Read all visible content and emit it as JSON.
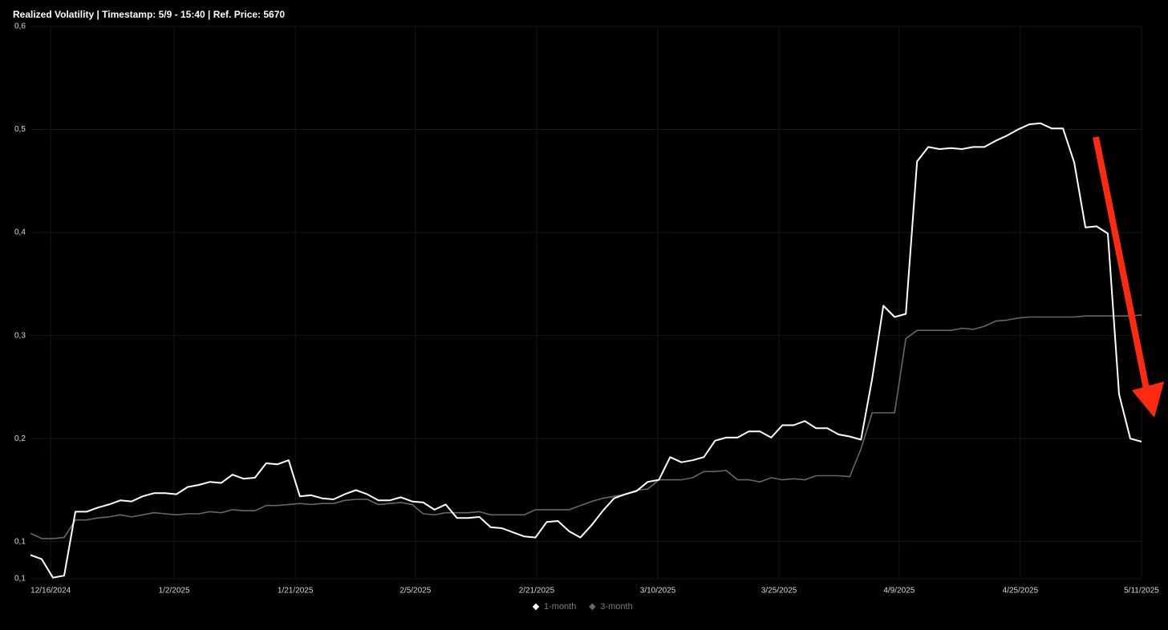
{
  "chart_data": {
    "type": "line",
    "title": "Realized Volatility | Timestamp: 5/9 - 15:40  | Ref. Price: 5670",
    "xlim": [
      0,
      99
    ],
    "xticks": [
      {
        "value": 1.8,
        "label": "12/16/2024"
      },
      {
        "value": 12.8,
        "label": "1/2/2025"
      },
      {
        "value": 23.6,
        "label": "1/21/2025"
      },
      {
        "value": 34.3,
        "label": "2/5/2025"
      },
      {
        "value": 45.1,
        "label": "2/21/2025"
      },
      {
        "value": 55.9,
        "label": "3/10/2025"
      },
      {
        "value": 66.7,
        "label": "3/25/2025"
      },
      {
        "value": 77.4,
        "label": "4/9/2025"
      },
      {
        "value": 88.2,
        "label": "4/25/2025"
      },
      {
        "value": 99,
        "label": "5/11/2025"
      }
    ],
    "ylim": [
      0.064,
      0.6
    ],
    "yticks": [
      {
        "value": 0.064,
        "label": "0,1"
      },
      {
        "value": 0.1,
        "label": "0,1"
      },
      {
        "value": 0.2,
        "label": "0,2"
      },
      {
        "value": 0.3,
        "label": "0,3"
      },
      {
        "value": 0.4,
        "label": "0,4"
      },
      {
        "value": 0.5,
        "label": "0,5"
      },
      {
        "value": 0.6,
        "label": "0,6"
      }
    ],
    "grid": true,
    "legend": "bottom",
    "series": [
      {
        "name": "1-month",
        "color": "#ffffff",
        "values": [
          0.087,
          0.083,
          0.065,
          0.067,
          0.129,
          0.129,
          0.133,
          0.136,
          0.14,
          0.139,
          0.144,
          0.147,
          0.147,
          0.146,
          0.153,
          0.155,
          0.158,
          0.157,
          0.165,
          0.161,
          0.162,
          0.176,
          0.175,
          0.179,
          0.144,
          0.145,
          0.142,
          0.141,
          0.146,
          0.15,
          0.146,
          0.14,
          0.14,
          0.143,
          0.139,
          0.138,
          0.131,
          0.136,
          0.123,
          0.123,
          0.124,
          0.114,
          0.113,
          0.109,
          0.105,
          0.104,
          0.119,
          0.12,
          0.11,
          0.104,
          0.116,
          0.13,
          0.142,
          0.146,
          0.149,
          0.158,
          0.16,
          0.182,
          0.177,
          0.179,
          0.182,
          0.198,
          0.201,
          0.201,
          0.207,
          0.207,
          0.201,
          0.213,
          0.213,
          0.217,
          0.21,
          0.21,
          0.204,
          0.202,
          0.199,
          0.258,
          0.329,
          0.318,
          0.321,
          0.469,
          0.483,
          0.481,
          0.482,
          0.481,
          0.483,
          0.483,
          0.489,
          0.494,
          0.5,
          0.505,
          0.506,
          0.501,
          0.501,
          0.468,
          0.405,
          0.406,
          0.399,
          0.243,
          0.2,
          0.197
        ]
      },
      {
        "name": "3-month",
        "color": "#5f6b6b",
        "values": [
          0.108,
          0.103,
          0.103,
          0.104,
          0.121,
          0.121,
          0.123,
          0.124,
          0.126,
          0.124,
          0.126,
          0.128,
          0.127,
          0.126,
          0.127,
          0.127,
          0.129,
          0.128,
          0.131,
          0.13,
          0.13,
          0.135,
          0.135,
          0.136,
          0.137,
          0.136,
          0.137,
          0.137,
          0.14,
          0.141,
          0.141,
          0.136,
          0.137,
          0.138,
          0.136,
          0.127,
          0.126,
          0.128,
          0.128,
          0.128,
          0.129,
          0.126,
          0.126,
          0.126,
          0.126,
          0.131,
          0.131,
          0.131,
          0.131,
          0.135,
          0.139,
          0.142,
          0.144,
          0.146,
          0.15,
          0.151,
          0.16,
          0.16,
          0.16,
          0.162,
          0.168,
          0.168,
          0.169,
          0.16,
          0.16,
          0.158,
          0.162,
          0.16,
          0.161,
          0.16,
          0.164,
          0.164,
          0.164,
          0.163,
          0.19,
          0.225,
          0.225,
          0.225,
          0.297,
          0.305,
          0.305,
          0.305,
          0.305,
          0.307,
          0.306,
          0.309,
          0.314,
          0.315,
          0.317,
          0.318,
          0.318,
          0.318,
          0.318,
          0.318,
          0.319,
          0.319,
          0.319,
          0.319,
          0.319,
          0.32
        ]
      }
    ]
  }
}
